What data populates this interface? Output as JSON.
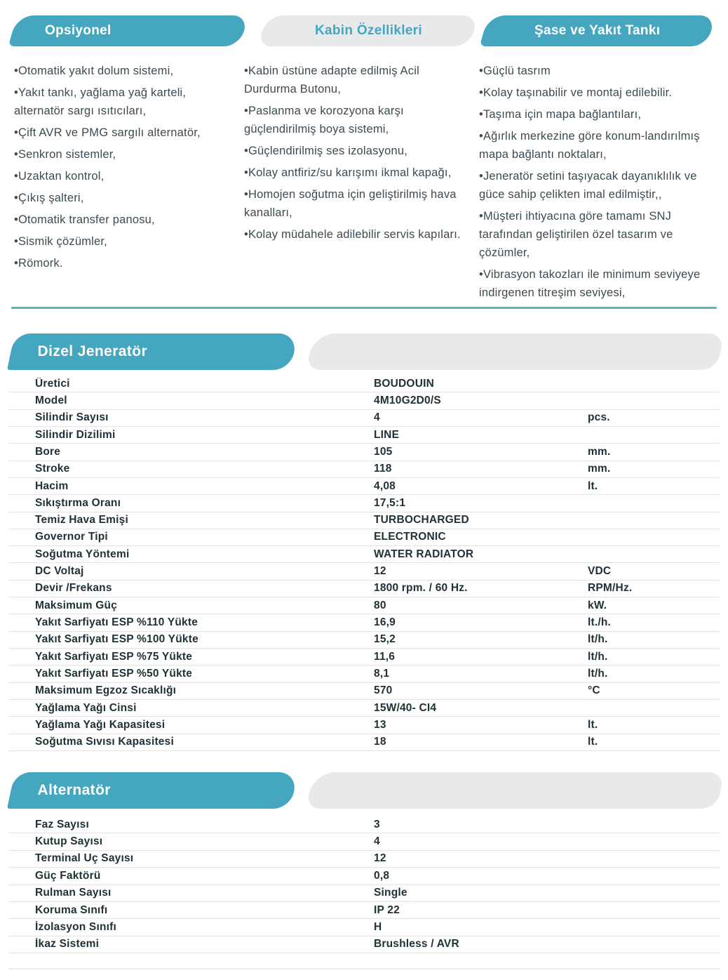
{
  "colors": {
    "teal": "#45a6bf",
    "gray": "#e8e9ea",
    "divider": "#57b2c8",
    "separator": "#e3e3e5",
    "list_text": "#3c4a51",
    "spec_text": "#203137"
  },
  "top_tabs": {
    "opsiyonel": {
      "label": "Opsiyonel"
    },
    "kabin": {
      "label": "Kabin Özellikleri"
    },
    "sase": {
      "label": "Şase ve Yakıt Tankı"
    }
  },
  "lists": {
    "opsiyonel": {
      "items": [
        {
          "text": "•Otomatik yakıt dolum sistemi,"
        },
        {
          "text": "•Yakıt tankı, yağlama yağ karteli, alternatör sargı ısıtıcıları,"
        },
        {
          "text": "•Çift AVR ve PMG sargılı alternatör,"
        },
        {
          "text": "•Senkron sistemler,"
        },
        {
          "text": "•Uzaktan kontrol,"
        },
        {
          "text": "•Çıkış şalteri,"
        },
        {
          "text": "•Otomatik transfer panosu,"
        },
        {
          "text": "•Sismik çözümler,"
        },
        {
          "text": "•Römork."
        }
      ]
    },
    "kabin": {
      "items": [
        {
          "text": "•Kabin üstüne adapte edilmiş Acil Durdurma Butonu,"
        },
        {
          "text": "•Paslanma ve korozyona karşı güçlendirilmiş boya sistemi,"
        },
        {
          "text": "•Güçlendirilmiş ses izolasyonu,"
        },
        {
          "text": "•Kolay antfiriz/su karışımı ikmal kapağı,"
        },
        {
          "text": "•Homojen soğutma için geliştirilmiş hava kanalları,"
        },
        {
          "text": "•Kolay müdahele adilebilir servis kapıları."
        }
      ]
    },
    "sase": {
      "items": [
        {
          "text": "•Güçlü tasrım"
        },
        {
          "text": "•Kolay taşınabilir ve montaj edilebilir."
        },
        {
          "text": "•Taşıma için mapa bağlantıları,"
        },
        {
          "text": "•Ağırlık merkezine göre konum-landırılmış mapa bağlantı noktaları,"
        },
        {
          "text": "•Jeneratör setini taşıyacak dayanıklılık ve güce sahip çelikten imal edilmiştir,,"
        },
        {
          "text": "•Müşteri ihtiyacına göre tamamı SNJ tarafından geliştirilen özel tasarım ve çözümler,"
        },
        {
          "text": "•Vibrasyon takozları ile minimum seviyeye indirgenen titreşim seviyesi,"
        }
      ]
    }
  },
  "sections": {
    "dizel": {
      "title": "Dizel Jeneratör",
      "rows": [
        {
          "label": "Üretici",
          "value": "BOUDOUIN",
          "unit": ""
        },
        {
          "label": "Model",
          "value": "4M10G2D0/S",
          "unit": ""
        },
        {
          "label": "Silindir Sayısı",
          "value": "4",
          "unit": "pcs."
        },
        {
          "label": "Silindir Dizilimi",
          "value": "LINE",
          "unit": ""
        },
        {
          "label": "Bore",
          "value": "105",
          "unit": "mm."
        },
        {
          "label": "Stroke",
          "value": "118",
          "unit": "mm."
        },
        {
          "label": "Hacim",
          "value": "4,08",
          "unit": "lt."
        },
        {
          "label": "Sıkıştırma Oranı",
          "value": "17,5:1",
          "unit": ""
        },
        {
          "label": "Temiz Hava Emişi",
          "value": "TURBOCHARGED",
          "unit": ""
        },
        {
          "label": "Governor Tipi",
          "value": "ELECTRONIC",
          "unit": ""
        },
        {
          "label": "Soğutma Yöntemi",
          "value": "WATER RADIATOR",
          "unit": ""
        },
        {
          "label": "DC Voltaj",
          "value": "12",
          "unit": "VDC"
        },
        {
          "label": "Devir /Frekans",
          "value": "1800 rpm. / 60 Hz.",
          "unit": "RPM/Hz."
        },
        {
          "label": "Maksimum Güç",
          "value": "80",
          "unit": "kW."
        },
        {
          "label": "Yakıt Sarfiyatı ESP %110 Yükte",
          "value": "16,9",
          "unit": "lt./h."
        },
        {
          "label": "Yakıt Sarfiyatı ESP %100 Yükte",
          "value": "15,2",
          "unit": "lt/h."
        },
        {
          "label": "Yakıt Sarfiyatı ESP %75 Yükte",
          "value": "11,6",
          "unit": "lt/h."
        },
        {
          "label": "Yakıt Sarfiyatı ESP %50 Yükte",
          "value": "8,1",
          "unit": "lt/h."
        },
        {
          "label": "Maksimum Egzoz Sıcaklığı",
          "value": "570",
          "unit": "°C"
        },
        {
          "label": "Yağlama Yağı Cinsi",
          "value": "15W/40- CI4",
          "unit": ""
        },
        {
          "label": "Yağlama Yağı Kapasitesi",
          "value": "13",
          "unit": "lt."
        },
        {
          "label": "Soğutma Sıvısı Kapasitesi",
          "value": "18",
          "unit": "lt."
        }
      ]
    },
    "alternator": {
      "title": "Alternatör",
      "rows": [
        {
          "label": "Faz Sayısı",
          "value": "3",
          "unit": ""
        },
        {
          "label": "Kutup Sayısı",
          "value": "4",
          "unit": ""
        },
        {
          "label": "Terminal Uç Sayısı",
          "value": "12",
          "unit": ""
        },
        {
          "label": "Güç Faktörü",
          "value": "0,8",
          "unit": ""
        },
        {
          "label": "Rulman Sayısı",
          "value": "Single",
          "unit": ""
        },
        {
          "label": "Koruma Sınıfı",
          "value": "IP 22",
          "unit": ""
        },
        {
          "label": "İzolasyon Sınıfı",
          "value": "H",
          "unit": ""
        },
        {
          "label": "İkaz Sistemi",
          "value": "Brushless / AVR",
          "unit": ""
        }
      ]
    }
  }
}
